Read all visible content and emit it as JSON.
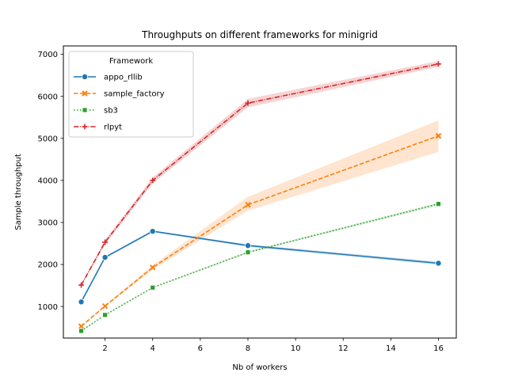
{
  "chart_data": {
    "type": "line",
    "title": "Throughputs on different frameworks for minigrid",
    "xlabel": "Nb of workers",
    "ylabel": "Sample throughput",
    "xlim": [
      0.25,
      16.75
    ],
    "ylim": [
      250,
      7200
    ],
    "xticks": [
      2,
      4,
      6,
      8,
      10,
      12,
      14,
      16
    ],
    "yticks": [
      1000,
      2000,
      3000,
      4000,
      5000,
      6000,
      7000
    ],
    "grid": false,
    "legend": {
      "title": "Framework",
      "position": "top-left"
    },
    "x": [
      1,
      2,
      4,
      8,
      16
    ],
    "series": [
      {
        "name": "appo_rllib",
        "values": [
          1110,
          2170,
          2790,
          2450,
          2030
        ],
        "ci_low": [
          1090,
          2150,
          2770,
          2420,
          1990
        ],
        "ci_high": [
          1130,
          2190,
          2810,
          2480,
          2070
        ],
        "color": "#1f77b4",
        "linestyle": "solid",
        "marker": "circle"
      },
      {
        "name": "sample_factory",
        "values": [
          530,
          1010,
          1930,
          3420,
          5060
        ],
        "ci_low": [
          520,
          990,
          1880,
          3280,
          4680
        ],
        "ci_high": [
          540,
          1030,
          1980,
          3610,
          5430
        ],
        "color": "#ff7f0e",
        "linestyle": "dashed",
        "marker": "x"
      },
      {
        "name": "sb3",
        "values": [
          420,
          800,
          1450,
          2290,
          3440
        ],
        "ci_low": [
          410,
          790,
          1440,
          2270,
          3410
        ],
        "ci_high": [
          430,
          810,
          1460,
          2310,
          3470
        ],
        "color": "#2ca02c",
        "linestyle": "dotted",
        "marker": "square"
      },
      {
        "name": "rlpyt",
        "values": [
          1510,
          2530,
          4000,
          5840,
          6770
        ],
        "ci_low": [
          1490,
          2480,
          3930,
          5740,
          6700
        ],
        "ci_high": [
          1530,
          2580,
          4070,
          5940,
          6840
        ],
        "color": "#d62728",
        "linestyle": "dashdot",
        "marker": "plus"
      }
    ]
  }
}
